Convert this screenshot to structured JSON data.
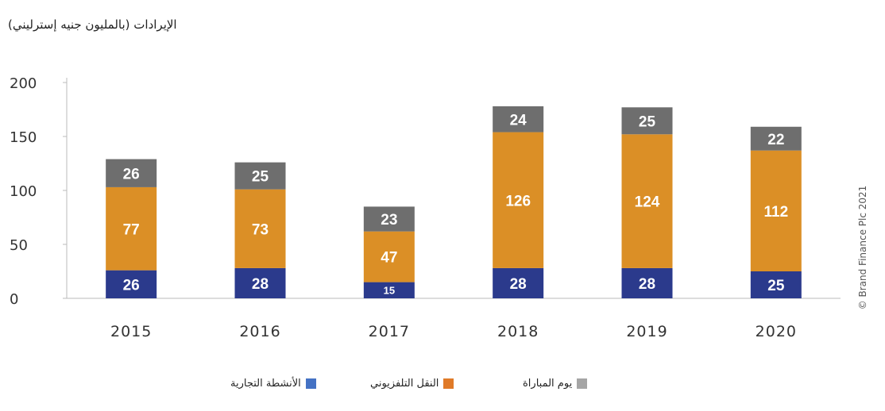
{
  "chart_data": {
    "type": "bar",
    "stacked": true,
    "ylabel": "الإيرادات (بالمليون جنيه إسترليني)",
    "categories": [
      "2015",
      "2016",
      "2017",
      "2018",
      "2019",
      "2020"
    ],
    "ylim": [
      0,
      200
    ],
    "yticks": [
      "0",
      "50",
      "100",
      "150",
      "200"
    ],
    "grid": false,
    "legend_position": "bottom",
    "series": [
      {
        "name": "الأنشطة التجارية",
        "color": "#2B3A8C",
        "legend_color": "#4472C4",
        "values": [
          26,
          28,
          15,
          28,
          28,
          25
        ]
      },
      {
        "name": "النقل التلفزيوني",
        "color": "#DB8F26",
        "legend_color": "#E07A28",
        "values": [
          77,
          73,
          47,
          126,
          124,
          112
        ]
      },
      {
        "name": "يوم المباراة",
        "color": "#6E6E6E",
        "legend_color": "#A5A5A5",
        "values": [
          26,
          25,
          23,
          24,
          25,
          22
        ]
      }
    ]
  },
  "copyright": "© Brand Finance Plc 2021"
}
